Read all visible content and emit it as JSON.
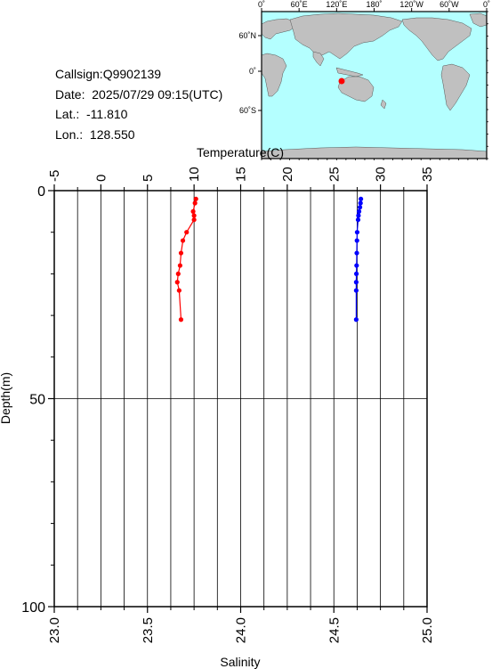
{
  "info": {
    "callsign": "Callsign:Q9902139",
    "date": "Date:  2025/07/29 09:15(UTC)",
    "lat": "Lat.:  -11.810",
    "lon": "Lon.:  128.550"
  },
  "map": {
    "top_ticks": [
      "0˚",
      "60˚E",
      "120˚E",
      "180˚",
      "120˚W",
      "60˚W",
      "0˚"
    ],
    "left_ticks": [
      "60˚N",
      "0˚",
      "60˚S"
    ],
    "ocean_color": "#b4ffff",
    "land_color": "#c0c0c0",
    "marker_color": "#ff0000"
  },
  "chart_data": {
    "type": "line",
    "top_axis_label": "Temperature(C)",
    "bottom_axis_label": "Salinity",
    "y_axis_label": "Depth(m)",
    "temperature_range": [
      -5,
      35
    ],
    "temperature_ticks": [
      "-5",
      "0",
      "5",
      "10",
      "15",
      "20",
      "25",
      "30",
      "35"
    ],
    "salinity_range": [
      23.0,
      25.0
    ],
    "salinity_ticks": [
      "23.0",
      "23.5",
      "24.0",
      "24.5",
      "25.0"
    ],
    "depth_range": [
      0,
      100
    ],
    "depth_ticks": [
      "0",
      "50",
      "100"
    ],
    "series": [
      {
        "axis": "temperature",
        "color": "#ff0000",
        "points": [
          {
            "depth": 2,
            "value": 10.2
          },
          {
            "depth": 3,
            "value": 10.1
          },
          {
            "depth": 5,
            "value": 9.9
          },
          {
            "depth": 6,
            "value": 10.0
          },
          {
            "depth": 7,
            "value": 10.0
          },
          {
            "depth": 10,
            "value": 9.2
          },
          {
            "depth": 12,
            "value": 8.8
          },
          {
            "depth": 15,
            "value": 8.6
          },
          {
            "depth": 18,
            "value": 8.5
          },
          {
            "depth": 20,
            "value": 8.3
          },
          {
            "depth": 22,
            "value": 8.2
          },
          {
            "depth": 24,
            "value": 8.4
          },
          {
            "depth": 31,
            "value": 8.6
          }
        ]
      },
      {
        "axis": "salinity",
        "color": "#0000ff",
        "points": [
          {
            "depth": 2,
            "value": 24.645
          },
          {
            "depth": 3,
            "value": 24.643
          },
          {
            "depth": 4,
            "value": 24.64
          },
          {
            "depth": 5,
            "value": 24.635
          },
          {
            "depth": 6,
            "value": 24.632
          },
          {
            "depth": 7,
            "value": 24.63
          },
          {
            "depth": 10,
            "value": 24.625
          },
          {
            "depth": 12,
            "value": 24.624
          },
          {
            "depth": 15,
            "value": 24.623
          },
          {
            "depth": 18,
            "value": 24.622
          },
          {
            "depth": 20,
            "value": 24.621
          },
          {
            "depth": 22,
            "value": 24.62
          },
          {
            "depth": 24,
            "value": 24.62
          },
          {
            "depth": 31,
            "value": 24.62
          }
        ]
      }
    ]
  }
}
